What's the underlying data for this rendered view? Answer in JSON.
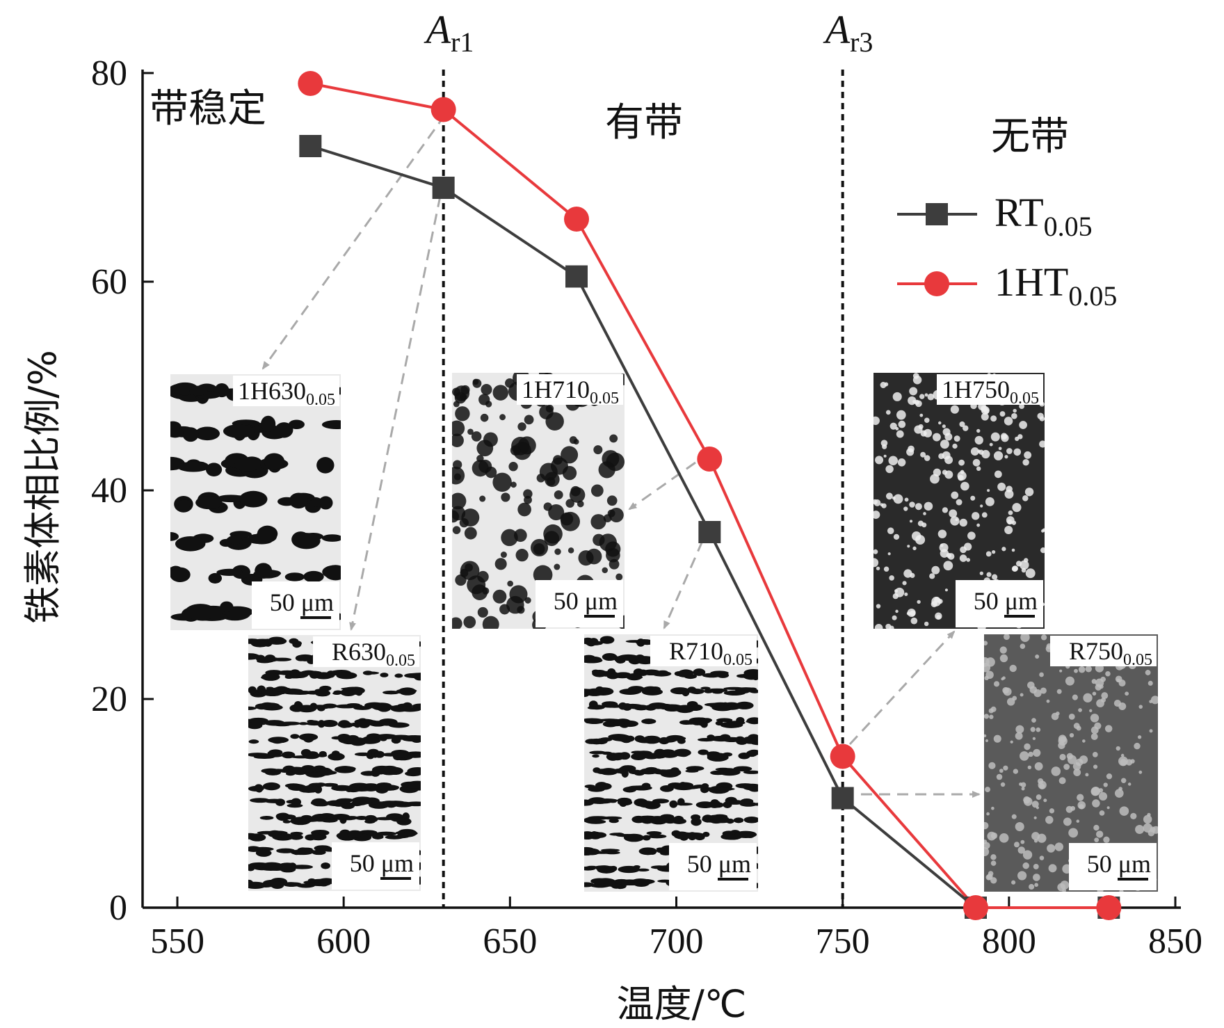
{
  "chart_data": {
    "type": "line",
    "xlabel": "温度/℃",
    "ylabel": "铁素体相比例/%",
    "xlim": [
      550,
      850
    ],
    "ylim": [
      0,
      80
    ],
    "xticks": [
      "550",
      "600",
      "650",
      "700",
      "750",
      "800",
      "850"
    ],
    "yticks": [
      "0",
      "20",
      "40",
      "60",
      "80"
    ],
    "series": [
      {
        "name": "RT",
        "name_sub": "0.05",
        "color": "#3d3d3d",
        "marker": "square",
        "x": [
          590,
          630,
          670,
          710,
          750,
          790,
          830
        ],
        "y": [
          73,
          69,
          60.5,
          36,
          10.5,
          0,
          0
        ]
      },
      {
        "name": "1HT",
        "name_sub": "0.05",
        "color": "#e8393c",
        "marker": "circle",
        "x": [
          590,
          630,
          670,
          710,
          750,
          790,
          830
        ],
        "y": [
          79,
          76.5,
          66,
          43,
          14.5,
          0,
          0
        ]
      }
    ],
    "vlines": [
      {
        "x": 630,
        "label": "A",
        "sub": "r1"
      },
      {
        "x": 750,
        "label": "A",
        "sub": "r3"
      }
    ],
    "regions": [
      "带稳定",
      "有带",
      "无带"
    ],
    "insets": [
      {
        "label": "1H630",
        "sub": "0.05",
        "scale": "50 μm",
        "style": "coarse-band-light"
      },
      {
        "label": "R630",
        "sub": "0.05",
        "scale": "50 μm",
        "style": "fine-band"
      },
      {
        "label": "1H710",
        "sub": "0.05",
        "scale": "50 μm",
        "style": "coarse-random"
      },
      {
        "label": "R710",
        "sub": "0.05",
        "scale": "50 μm",
        "style": "fine-band"
      },
      {
        "label": "1H750",
        "sub": "0.05",
        "scale": "50 μm",
        "style": "dark-random"
      },
      {
        "label": "R750",
        "sub": "0.05",
        "scale": "50 μm",
        "style": "grey-random"
      }
    ],
    "grid": false,
    "legend_position": "right"
  }
}
